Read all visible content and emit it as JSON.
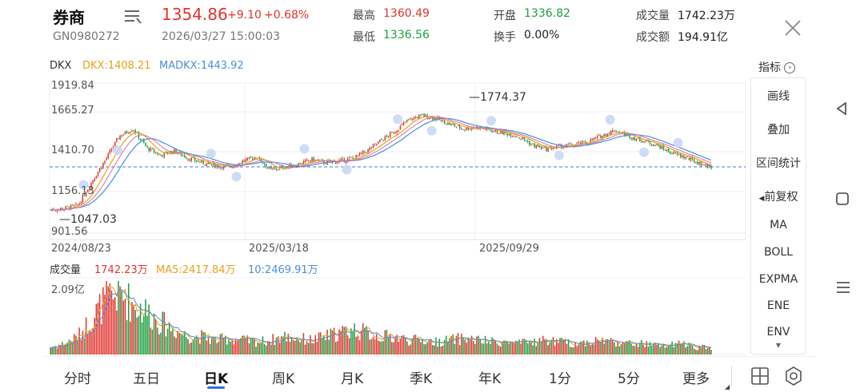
{
  "header": {
    "title": "券商",
    "code": "GN0980272",
    "price": "1354.86",
    "change": "+9.10",
    "change_pct": "+0.68%",
    "datetime": "2026/03/27 15:00:03",
    "stats": [
      {
        "label": "最高",
        "value": "1360.49",
        "color": "red"
      },
      {
        "label": "最低",
        "value": "1336.56",
        "color": "green"
      },
      {
        "label": "开盘",
        "value": "1336.82",
        "color": "green"
      },
      {
        "label": "换手",
        "value": "0.00%",
        "color": "plain"
      },
      {
        "label": "成交量",
        "value": "1742.23万",
        "color": "plain"
      },
      {
        "label": "成交额",
        "value": "194.91亿",
        "color": "plain"
      }
    ]
  },
  "indicator": {
    "name": "DKX",
    "dkx": "DKX:1408.21",
    "madkx": "MADKX:1443.92"
  },
  "price_axis": {
    "ticks": [
      "1919.84",
      "1665.27",
      "1410.70",
      "1156.13",
      "901.56"
    ],
    "max_label": "1774.37",
    "min_label": "1047.03"
  },
  "date_axis": [
    "2024/08/23",
    "2025/03/18",
    "2025/09/29"
  ],
  "volume": {
    "label": "成交量",
    "value": "1742.23万",
    "ma5": "MA5:2417.84万",
    "ma10": "10:2469.91万",
    "max_tick": "2.09亿"
  },
  "side_panel": {
    "title": "指标",
    "items": [
      "画线",
      "叠加",
      "区间统计",
      "前复权",
      "MA",
      "BOLL",
      "EXPMA",
      "ENE",
      "ENV"
    ]
  },
  "tabs": [
    "分时",
    "五日",
    "日K",
    "周K",
    "月K",
    "季K",
    "年K",
    "1分",
    "5分",
    "更多"
  ],
  "active_tab": "日K",
  "colors": {
    "up": "#e0332f",
    "down": "#1b9e3e",
    "dkx": "#e8a21a",
    "madkx": "#4a8fd8",
    "grid": "#e8e8e8"
  },
  "chart_data": {
    "type": "candlestick",
    "x_start": "2024/08/23",
    "y_range": [
      901.56,
      1919.84
    ],
    "key_levels": {
      "high": 1774.37,
      "low": 1047.03,
      "last": 1354.86
    },
    "trend_keypoints": [
      1060,
      1070,
      1090,
      1250,
      1400,
      1560,
      1610,
      1480,
      1430,
      1460,
      1410,
      1380,
      1360,
      1350,
      1390,
      1420,
      1330,
      1350,
      1370,
      1400,
      1380,
      1390,
      1410,
      1460,
      1530,
      1590,
      1670,
      1700,
      1680,
      1640,
      1610,
      1620,
      1600,
      1580,
      1560,
      1500,
      1470,
      1490,
      1500,
      1520,
      1560,
      1600,
      1560,
      1530,
      1500,
      1450,
      1420,
      1380,
      1350
    ],
    "volume_keypoints": [
      0.2,
      0.3,
      0.5,
      1.0,
      1.5,
      1.7,
      1.4,
      1.2,
      0.9,
      0.7,
      0.5,
      0.5,
      0.4,
      0.45,
      0.4,
      0.35,
      0.4,
      0.5,
      0.45,
      0.4,
      0.5,
      0.6,
      0.7,
      0.6,
      0.5,
      0.5,
      0.4,
      0.4,
      0.35,
      0.4,
      0.45,
      0.4,
      0.35,
      0.35,
      0.3,
      0.35,
      0.4,
      0.35,
      0.3,
      0.35,
      0.4,
      0.35,
      0.3,
      0.3,
      0.25,
      0.25,
      0.3,
      0.2,
      0.2
    ]
  }
}
